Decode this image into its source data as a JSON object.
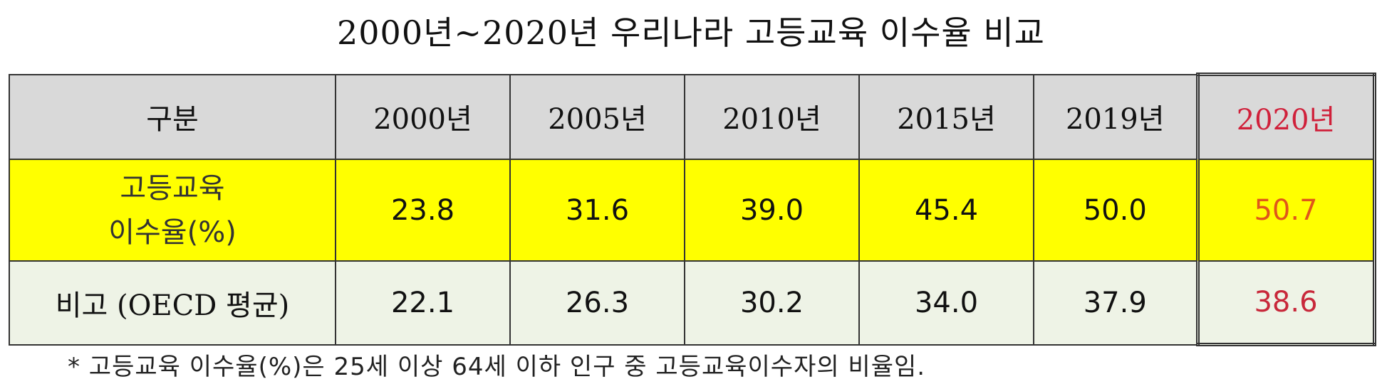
{
  "header": {
    "title": "2000년~2020년 우리나라 고등교육 이수율 비교"
  },
  "table": {
    "columns": [
      "구분",
      "2000년",
      "2005년",
      "2010년",
      "2015년",
      "2019년",
      "2020년"
    ],
    "rows": [
      [
        "고등교육\n이수율(%)",
        "23.8",
        "31.6",
        "39.0",
        "45.4",
        "50.0",
        "50.7"
      ],
      [
        "비고 (OECD 평균)",
        "22.1",
        "26.3",
        "30.2",
        "34.0",
        "37.9",
        "38.6"
      ]
    ]
  },
  "footnote": "* 고등교육 이수율(%)은 25세 이상 64세 이하 인구 중 고등교육이수자의 비율임."
}
